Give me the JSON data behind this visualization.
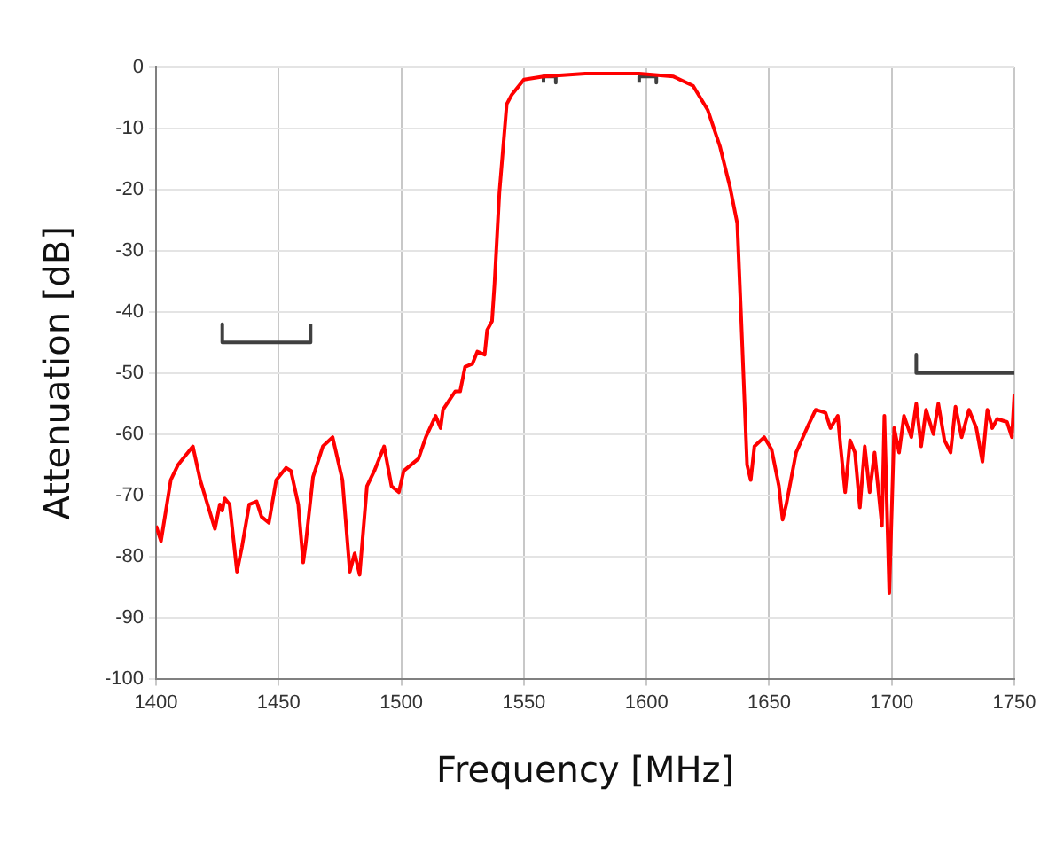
{
  "chart_data": {
    "type": "line",
    "xlabel": "Frequency [MHz]",
    "ylabel": "Attenuation [dB]",
    "xlim": [
      1400,
      1750
    ],
    "xticks": [
      1400,
      1450,
      1500,
      1550,
      1600,
      1650,
      1700,
      1750
    ],
    "ylim": [
      -100,
      0
    ],
    "yticks": [
      -100,
      -90,
      -80,
      -70,
      -60,
      -50,
      -40,
      -30,
      -20,
      -10,
      0
    ],
    "grid": true,
    "legend": false,
    "marker": "none",
    "line_style": "solid",
    "series": [
      {
        "color": "#ff0000",
        "x": [
          1400,
          1402,
          1406,
          1409,
          1411,
          1415,
          1418,
          1421,
          1424,
          1426,
          1427,
          1428,
          1430,
          1433,
          1435,
          1438,
          1441,
          1443,
          1446,
          1449,
          1453,
          1455,
          1458,
          1460,
          1461,
          1464,
          1468,
          1472,
          1476,
          1479,
          1481,
          1483,
          1486,
          1489,
          1493,
          1496,
          1499,
          1501,
          1507,
          1510,
          1514,
          1516,
          1517,
          1522,
          1524,
          1526,
          1529,
          1531,
          1534,
          1535,
          1537,
          1538,
          1540,
          1543,
          1545,
          1550,
          1558,
          1575,
          1597,
          1611,
          1619,
          1625,
          1630,
          1634,
          1637,
          1638.5,
          1640,
          1641,
          1642.5,
          1644,
          1648,
          1651,
          1654,
          1655.5,
          1657,
          1661,
          1666,
          1669,
          1673,
          1675,
          1678,
          1679,
          1681,
          1683,
          1685,
          1687,
          1689,
          1691,
          1693,
          1696,
          1697,
          1699,
          1701,
          1703,
          1705,
          1708,
          1710,
          1712,
          1714,
          1717,
          1719,
          1721.5,
          1724,
          1726,
          1728.5,
          1731.5,
          1734.5,
          1737,
          1739,
          1741,
          1743,
          1747,
          1749,
          1750
        ],
        "values": [
          -75,
          -77.5,
          -67.5,
          -65,
          -64,
          -62,
          -67.5,
          -71.5,
          -75.5,
          -71.5,
          -72.5,
          -70.5,
          -71.5,
          -82.5,
          -78.5,
          -71.5,
          -71,
          -73.5,
          -74.5,
          -67.5,
          -65.5,
          -66,
          -71.5,
          -81,
          -78,
          -67,
          -62,
          -60.5,
          -67.5,
          -82.5,
          -79.5,
          -83,
          -68.5,
          -66,
          -62,
          -68.5,
          -69.5,
          -66,
          -64,
          -60.5,
          -57,
          -59,
          -56,
          -53,
          -53,
          -49,
          -48.5,
          -46.5,
          -47,
          -43,
          -41.5,
          -35.5,
          -20.5,
          -6,
          -4.5,
          -2,
          -1.5,
          -1,
          -1,
          -1.5,
          -3,
          -7,
          -13,
          -19.5,
          -25.5,
          -40,
          -55,
          -65,
          -67.5,
          -62,
          -60.5,
          -62.5,
          -68.5,
          -74,
          -71.5,
          -63,
          -58.5,
          -56,
          -56.5,
          -59,
          -57,
          -61.5,
          -69.5,
          -61,
          -63,
          -72,
          -62,
          -69.5,
          -63,
          -75,
          -57,
          -86,
          -59,
          -63,
          -57,
          -60.5,
          -55,
          -62,
          -56,
          -60,
          -55,
          -61,
          -63,
          -55.5,
          -60.5,
          -56,
          -59,
          -64.5,
          -56,
          -59,
          -57.5,
          -58,
          -60.5,
          -53.5
        ]
      },
      {
        "color": "#404040",
        "x": [
          1427,
          1427,
          1463,
          1463,
          null,
          1710,
          1710,
          1750,
          null,
          1558,
          1558,
          1563,
          1563,
          null,
          1597,
          1597,
          1604,
          1604
        ],
        "values": [
          -42,
          -45,
          -45,
          -42,
          null,
          -47,
          -50,
          -50,
          null,
          -2.5,
          -1.5,
          -1.5,
          -2.5,
          null,
          -2.5,
          -1.5,
          -1.5,
          -2.5
        ]
      }
    ]
  }
}
